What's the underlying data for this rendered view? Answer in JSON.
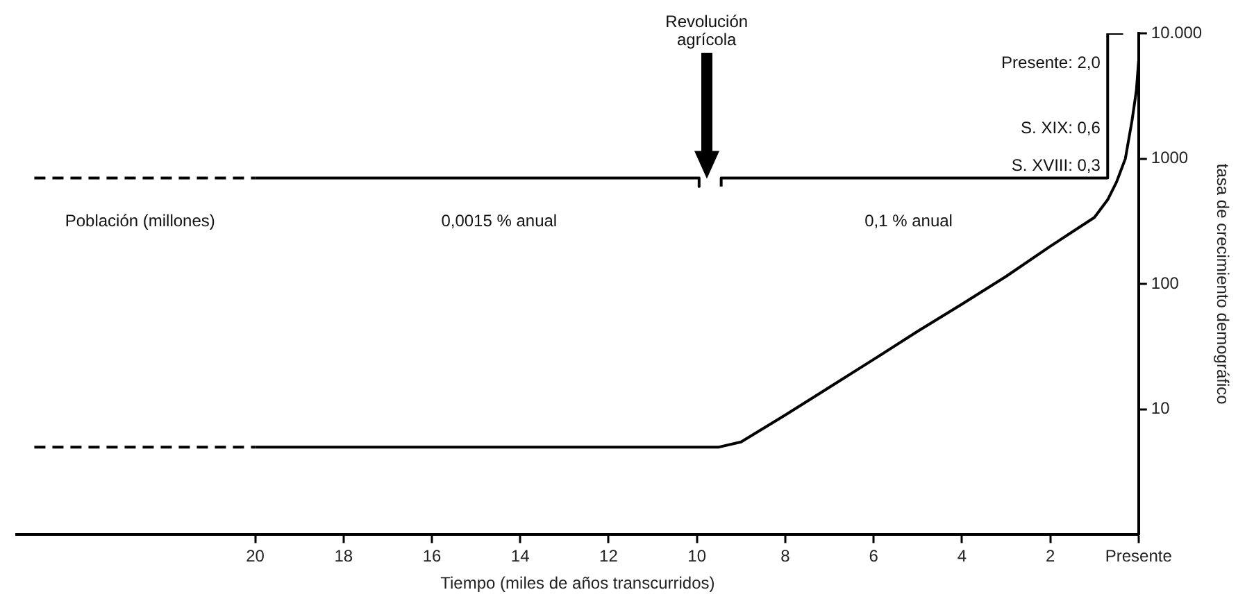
{
  "chart_data": {
    "type": "line",
    "xlabel": "Tiempo (miles de años transcurridos)",
    "ylabel": "tasa de crecimiento demográfico",
    "xlim": [
      25.4,
      0
    ],
    "xticks": [
      20,
      18,
      16,
      14,
      12,
      10,
      8,
      6,
      4,
      2,
      {
        "value": 0,
        "label": "Presente"
      }
    ],
    "ylim": [
      1,
      10000
    ],
    "yticks": [
      10,
      100,
      1000,
      {
        "value": 10000,
        "label": "10.000"
      }
    ],
    "log": "y",
    "grid": false,
    "legend": false,
    "marker": "none",
    "series": [
      {
        "color": "#000000",
        "line_style": "dashed",
        "x": [
          25,
          20
        ],
        "values": [
          5,
          5
        ]
      },
      {
        "color": "#000000",
        "line_style": "solid",
        "x": [
          20,
          9.5,
          9,
          8,
          7,
          6,
          5,
          4,
          3,
          2,
          1,
          0.7,
          0.5,
          0.3,
          0.15,
          0.05,
          0
        ],
        "values": [
          5,
          5,
          5.5,
          9,
          15,
          25,
          42,
          69,
          115,
          200,
          340,
          470,
          650,
          1000,
          2000,
          3500,
          6000
        ]
      },
      {
        "color": "#000000",
        "line_style": "dashed",
        "x": [
          25,
          20
        ],
        "values": [
          700,
          700
        ]
      },
      {
        "color": "#000000",
        "line_style": "solid",
        "x": [
          20,
          9.95,
          9.95
        ],
        "values": [
          700,
          700,
          600
        ]
      },
      {
        "color": "#000000",
        "line_style": "solid",
        "x": [
          9.45,
          9.45,
          0.7,
          0.7,
          0.35
        ],
        "values": [
          600,
          700,
          700,
          10000,
          10000
        ]
      }
    ],
    "annotations": [
      "Revolución agrícola",
      "Población (millones)",
      "0,0015 % anual",
      "0,1 % anual",
      "Presente: 2,0",
      "S. XIX: 0,6",
      "S. XVIII: 0,3"
    ]
  }
}
